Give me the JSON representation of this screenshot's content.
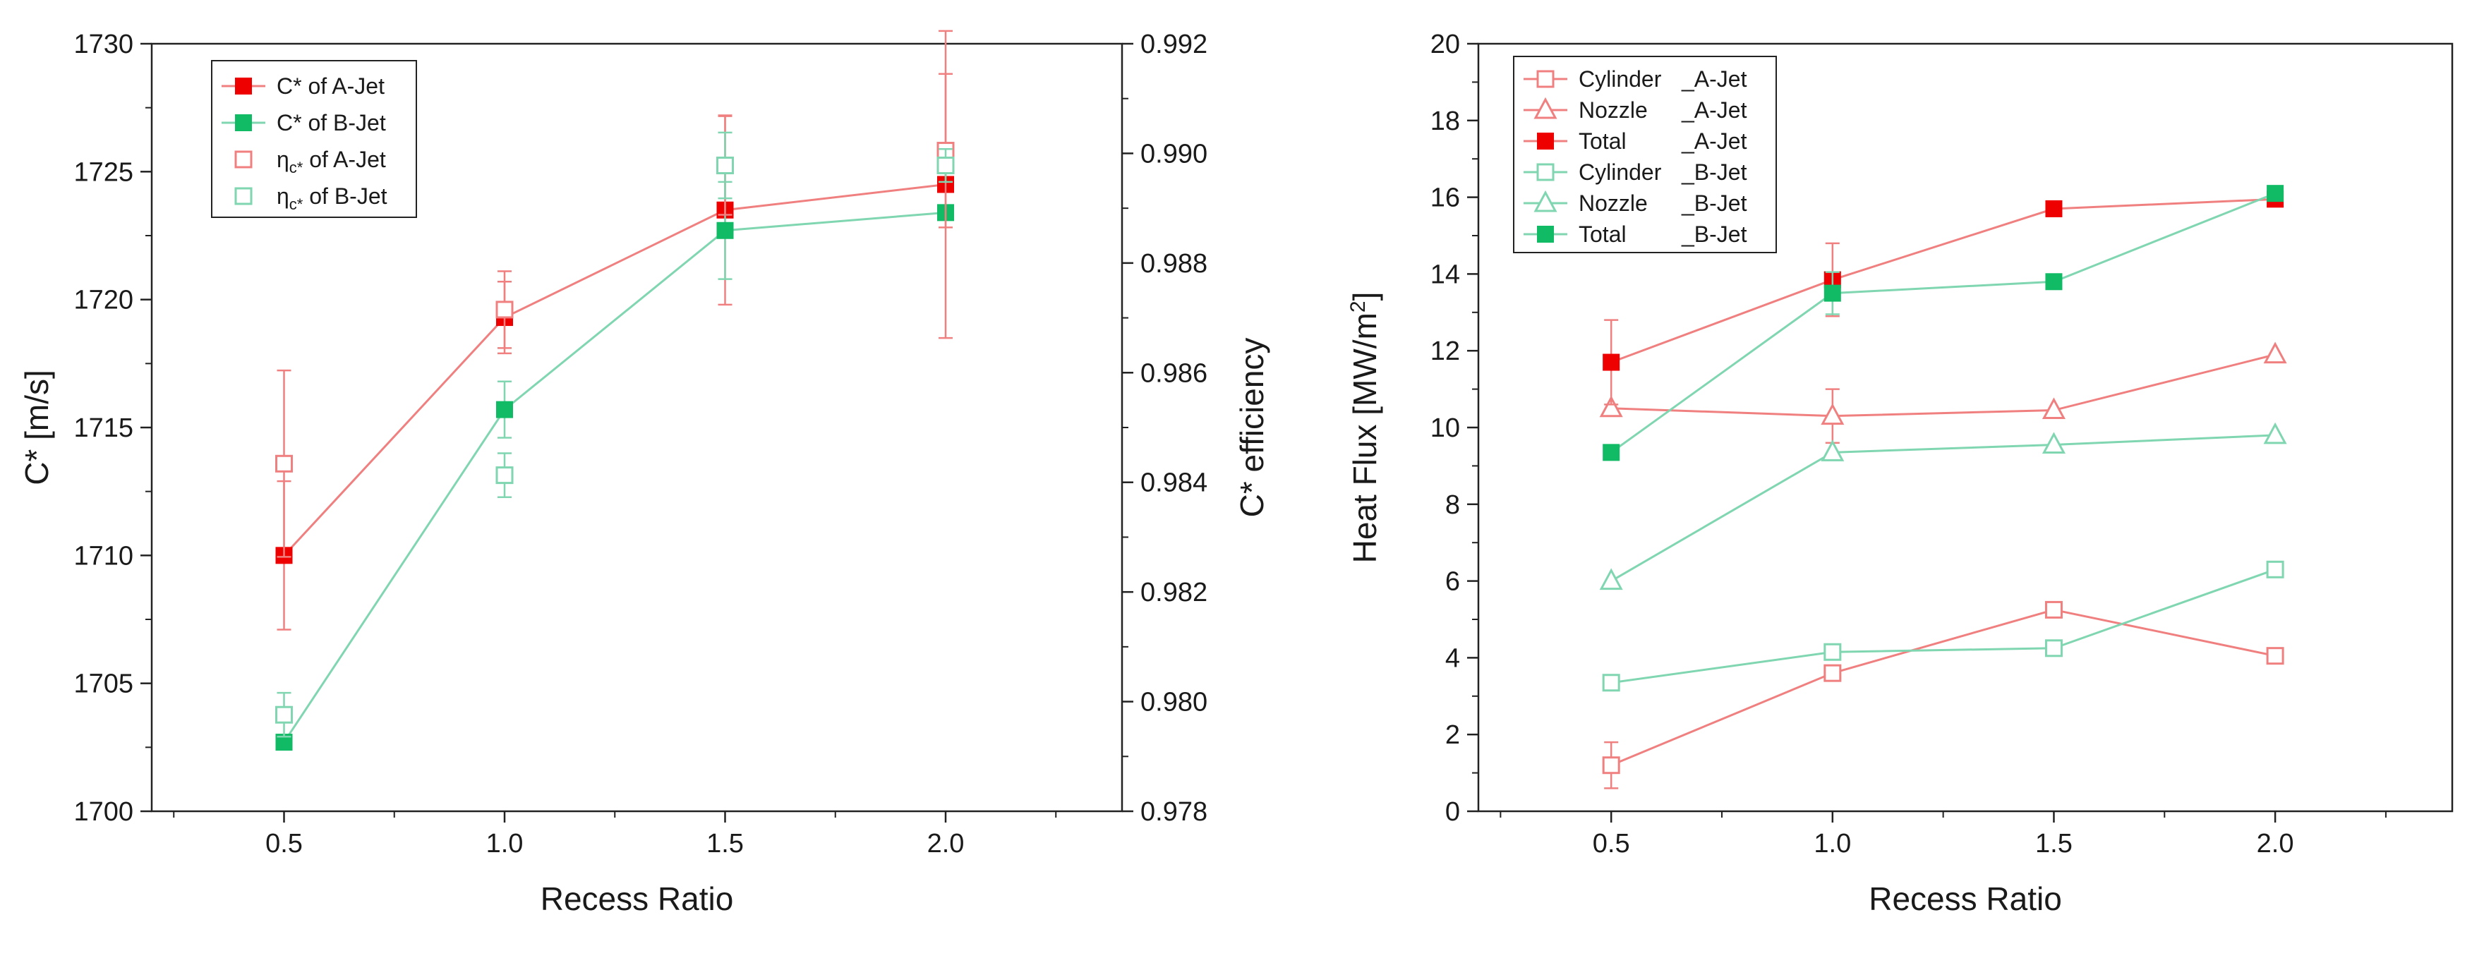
{
  "chart_data": [
    {
      "id": "left",
      "type": "line",
      "xlabel": "Recess Ratio",
      "ylabel": "C* [m/s]",
      "y2label": "C* efficiency",
      "xlim": [
        0.2,
        2.4
      ],
      "ylim": [
        1700,
        1730
      ],
      "y2lim": [
        0.978,
        0.992
      ],
      "xticks": [
        "0.5",
        "1.0",
        "1.5",
        "2.0"
      ],
      "yticks": [
        "1700",
        "1705",
        "1710",
        "1715",
        "1720",
        "1725",
        "1730"
      ],
      "y2ticks": [
        "0.978",
        "0.980",
        "0.982",
        "0.984",
        "0.986",
        "0.988",
        "0.990",
        "0.992"
      ],
      "legend_position": "top-left",
      "series": [
        {
          "name": "C* of A-Jet",
          "axis": "left",
          "color": "#f08080",
          "fill": "#ee0000",
          "marker": "square-filled",
          "line": true,
          "x": [
            0.5,
            1.0,
            1.5,
            2.0
          ],
          "y": [
            1710.0,
            1719.3,
            1723.5,
            1724.5
          ],
          "err": [
            2.9,
            1.4,
            3.7,
            6.0
          ]
        },
        {
          "name": "C* of B-Jet",
          "axis": "left",
          "color": "#7fd6b0",
          "fill": "#11bb66",
          "marker": "square-filled",
          "line": true,
          "x": [
            0.5,
            1.0,
            1.5,
            2.0
          ],
          "y": [
            1702.7,
            1715.7,
            1722.7,
            1723.4
          ],
          "err": [
            0,
            1.1,
            1.9,
            0
          ]
        },
        {
          "name_prefix": "η",
          "name_sub": "c*",
          "name_suffix": " of A-Jet",
          "axis": "right",
          "color": "#f08080",
          "marker": "square-open",
          "line": false,
          "x": [
            0.5,
            1.0,
            1.5,
            2.0
          ],
          "y": [
            0.98434,
            0.98715,
            0.98978,
            0.99005
          ],
          "err": [
            0.0017,
            0.0007,
            0.0009,
            0.0014
          ]
        },
        {
          "name_prefix": "η",
          "name_sub": "c*",
          "name_suffix": " of B-Jet",
          "axis": "right",
          "color": "#7fd6b0",
          "marker": "square-open",
          "line": false,
          "x": [
            0.5,
            1.0,
            1.5,
            2.0
          ],
          "y": [
            0.97976,
            0.98413,
            0.98978,
            0.98978
          ],
          "err": [
            0.0004,
            0.0004,
            0.0006,
            0.0003
          ]
        }
      ]
    },
    {
      "id": "right",
      "type": "line",
      "xlabel": "Recess Ratio",
      "ylabel_main": "Heat Flux [MW/m",
      "ylabel_sup": "2",
      "ylabel_end": "]",
      "xlim": [
        0.2,
        2.4
      ],
      "ylim": [
        0,
        20
      ],
      "xticks": [
        "0.5",
        "1.0",
        "1.5",
        "2.0"
      ],
      "yticks": [
        "0",
        "2",
        "4",
        "6",
        "8",
        "10",
        "12",
        "14",
        "16",
        "18",
        "20"
      ],
      "legend_position": "top-left",
      "series": [
        {
          "name": "Cylinder",
          "suffix": "_A-Jet",
          "color": "#f08080",
          "marker": "square-open",
          "x": [
            0.5,
            1.0,
            1.5,
            2.0
          ],
          "y": [
            1.2,
            3.6,
            5.25,
            4.05
          ],
          "err": [
            0.6,
            0,
            0,
            0
          ]
        },
        {
          "name": "Nozzle",
          "suffix": "_A-Jet",
          "color": "#f08080",
          "marker": "triangle-open",
          "x": [
            0.5,
            1.0,
            1.5,
            2.0
          ],
          "y": [
            10.5,
            10.3,
            10.45,
            11.9
          ],
          "err": [
            0,
            0.7,
            0,
            0
          ]
        },
        {
          "name": "Total",
          "suffix": "_A-Jet",
          "color": "#f08080",
          "fill": "#ee0000",
          "marker": "square-filled",
          "x": [
            0.5,
            1.0,
            1.5,
            2.0
          ],
          "y": [
            11.7,
            13.85,
            15.7,
            15.95
          ],
          "err": [
            1.1,
            0.95,
            0,
            0
          ]
        },
        {
          "name": "Cylinder",
          "suffix": "_B-Jet",
          "color": "#7fd6b0",
          "marker": "square-open",
          "x": [
            0.5,
            1.0,
            1.5,
            2.0
          ],
          "y": [
            3.35,
            4.15,
            4.25,
            6.3
          ],
          "err": [
            0,
            0,
            0,
            0
          ]
        },
        {
          "name": "Nozzle",
          "suffix": "_B-Jet",
          "color": "#7fd6b0",
          "marker": "triangle-open",
          "x": [
            0.5,
            1.0,
            1.5,
            2.0
          ],
          "y": [
            6.0,
            9.35,
            9.55,
            9.8
          ],
          "err": [
            0,
            0,
            0,
            0
          ]
        },
        {
          "name": "Total",
          "suffix": "_B-Jet",
          "color": "#7fd6b0",
          "fill": "#11bb66",
          "marker": "square-filled",
          "x": [
            0.5,
            1.0,
            1.5,
            2.0
          ],
          "y": [
            9.35,
            13.5,
            13.8,
            16.1
          ],
          "err": [
            0,
            0.55,
            0,
            0
          ]
        }
      ]
    }
  ]
}
